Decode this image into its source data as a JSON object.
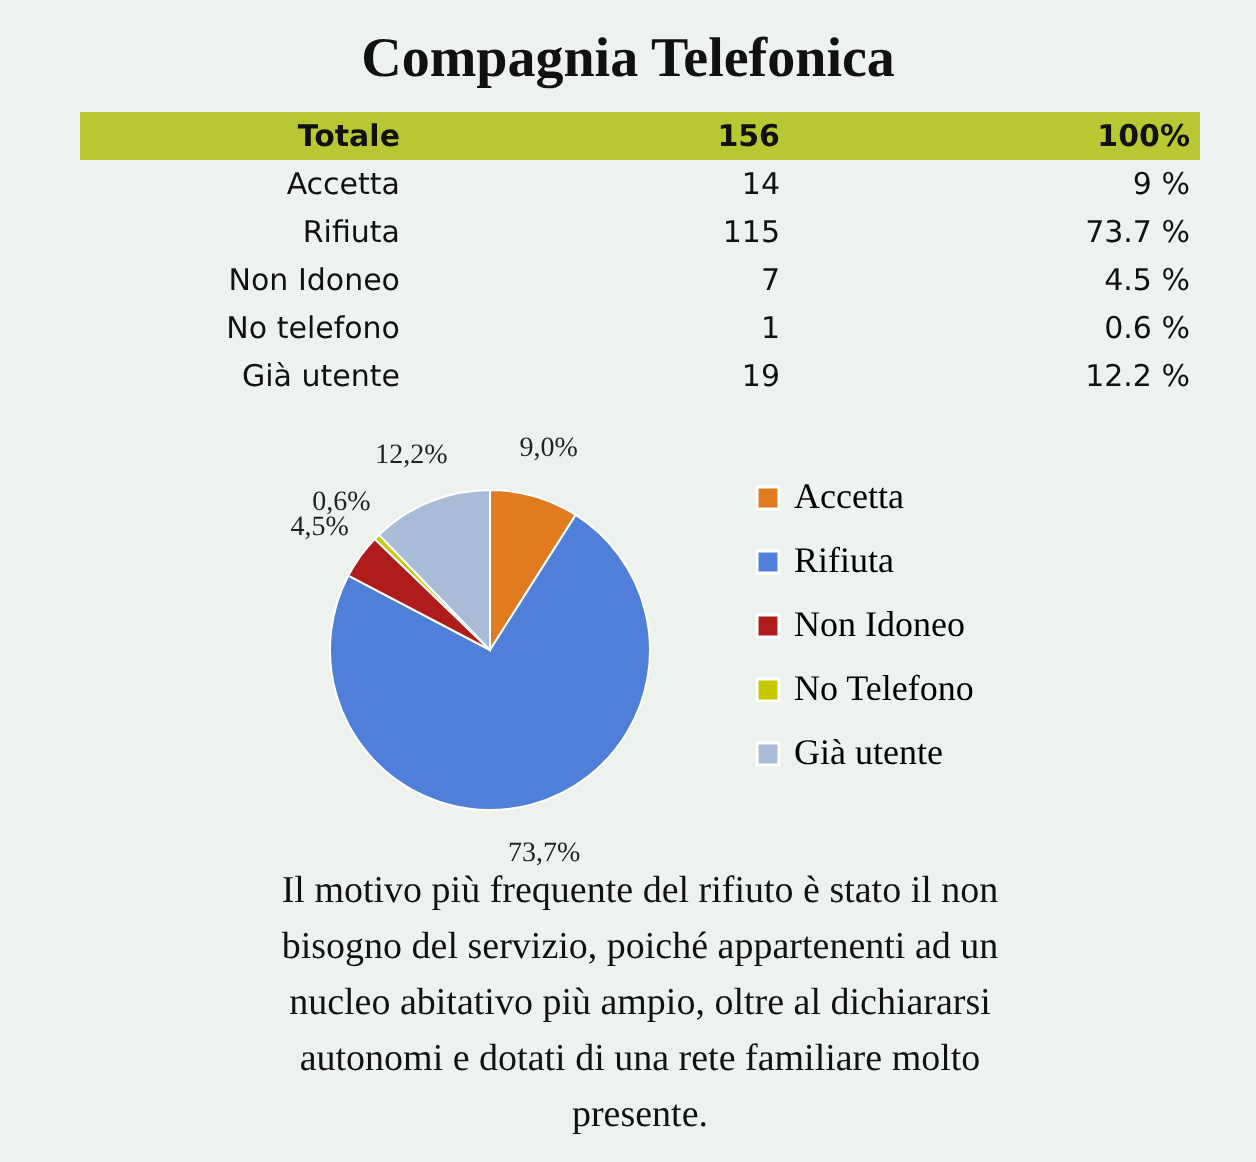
{
  "chart_data": {
    "type": "pie",
    "title": "Compagnia Telefonica",
    "categories": [
      "Accetta",
      "Rifiuta",
      "Non Idoneo",
      "No Telefono",
      "Già utente"
    ],
    "values": [
      9.0,
      73.7,
      4.5,
      0.6,
      12.2
    ],
    "colors": [
      "#e07b20",
      "#4f7fd8",
      "#b01c1c",
      "#c8c800",
      "#a8bcd8"
    ],
    "value_labels": [
      "9,0%",
      "73,7%",
      "4,5%",
      "0,6%",
      "12,2%"
    ],
    "legend": "right",
    "annotations": [
      "Totale",
      "156",
      "100%",
      "Accetta",
      "14",
      "9 %",
      "Rifiuta",
      "115",
      "73.7 %",
      "Non Idoneo",
      "7",
      "4.5 %",
      "No telefono",
      "1",
      "0.6 %",
      "Già utente",
      "19",
      "12.2 %",
      "Il motivo più frequente del rifiuto è stato il non bisogno del servizio, poiché appartenenti ad un nucleo abitativo più ampio, oltre al dichiararsi autonomi e dotati di una rete familiare molto presente."
    ]
  }
}
